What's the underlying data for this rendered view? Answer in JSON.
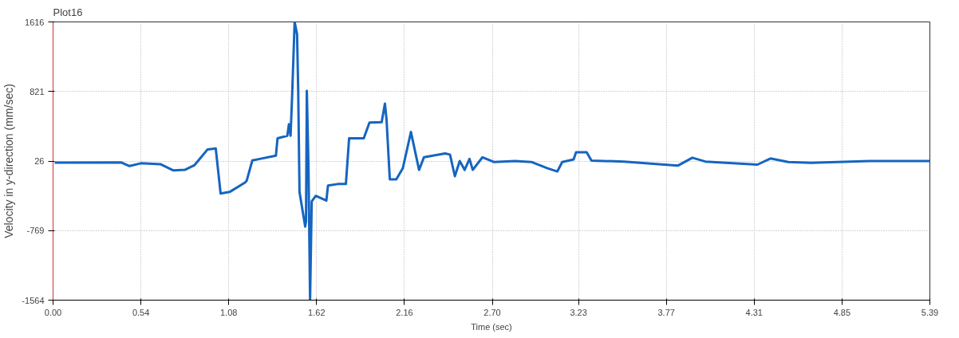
{
  "chart_data": {
    "type": "line",
    "title": "Plot16",
    "xlabel": "Time (sec)",
    "ylabel": "Velocity in y-direction (mm/sec)",
    "x": [
      0.01,
      0.42,
      0.47,
      0.54,
      0.66,
      0.74,
      0.81,
      0.87,
      0.91,
      0.95,
      1.0,
      1.03,
      1.085,
      1.18,
      1.19,
      1.225,
      1.27,
      1.37,
      1.38,
      1.44,
      1.45,
      1.46,
      1.47,
      1.485,
      1.5,
      1.507,
      1.515,
      1.55,
      1.555,
      1.56,
      1.57,
      1.58,
      1.59,
      1.615,
      1.68,
      1.69,
      1.75,
      1.8,
      1.82,
      1.91,
      1.945,
      2.02,
      2.04,
      2.05,
      2.07,
      2.11,
      2.15,
      2.2,
      2.25,
      2.28,
      2.41,
      2.44,
      2.47,
      2.5,
      2.53,
      2.56,
      2.58,
      2.64,
      2.71,
      2.84,
      2.94,
      3.04,
      3.1,
      3.13,
      3.2,
      3.215,
      3.28,
      3.31,
      3.51,
      3.84,
      3.93,
      4.01,
      4.33,
      4.41,
      4.52,
      4.66,
      5.02,
      5.39
    ],
    "values": [
      8,
      10,
      -31,
      0,
      -10,
      -82,
      -75,
      -20,
      69,
      159,
      170,
      -345,
      -328,
      -220,
      -200,
      33,
      50,
      88,
      286,
      315,
      448,
      315,
      791,
      1616,
      1476,
      827,
      -328,
      -724,
      -664,
      827,
      -20,
      -1564,
      -436,
      -372,
      -427,
      -255,
      -237,
      -237,
      286,
      286,
      466,
      470,
      683,
      500,
      -183,
      -183,
      -57,
      358,
      -75,
      69,
      112,
      100,
      -147,
      26,
      -75,
      50,
      -75,
      69,
      15,
      26,
      15,
      -57,
      -93,
      15,
      45,
      127,
      127,
      30,
      20,
      -27,
      64,
      20,
      -15,
      55,
      15,
      5,
      26,
      26
    ],
    "color": "#1565c0",
    "xlim": [
      0,
      5.39
    ],
    "ylim": [
      -1564,
      1616
    ],
    "xticks": [
      {
        "value": 0,
        "label": "0.00"
      },
      0.54,
      1.08,
      1.62,
      2.16,
      {
        "value": 2.7,
        "label": "2.70"
      },
      3.23,
      3.77,
      4.31,
      4.85,
      5.39
    ],
    "yticks": [
      -1564,
      -769,
      26,
      821,
      1616
    ],
    "grid": true,
    "marker": "none",
    "line_style": "solid"
  }
}
